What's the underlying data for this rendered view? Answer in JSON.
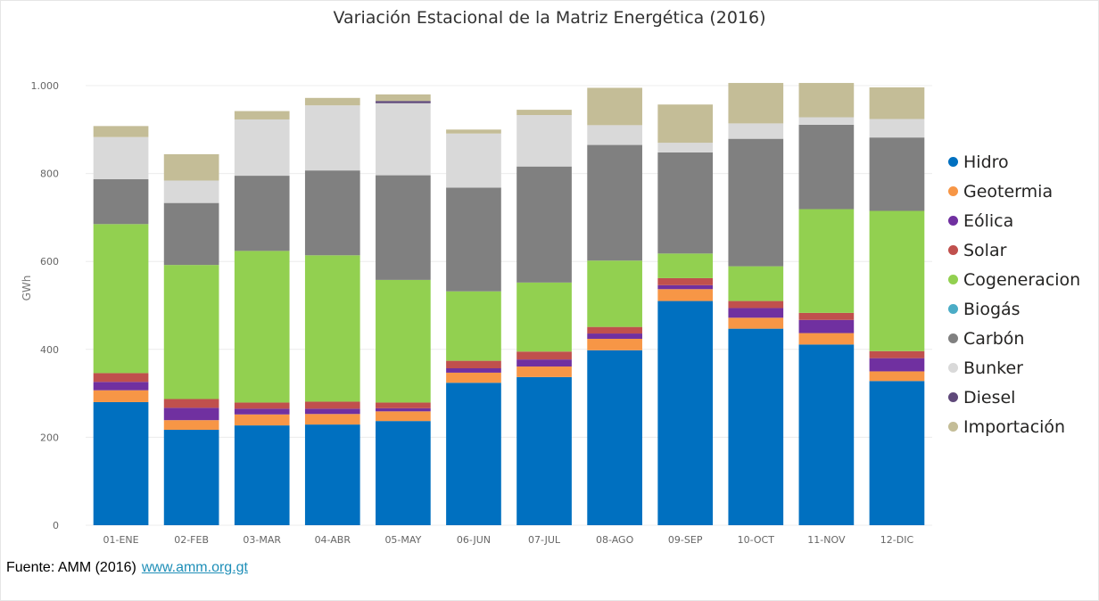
{
  "chart_data": {
    "type": "bar",
    "stacked": true,
    "title": "Variación Estacional de la Matriz Energética (2016)",
    "xlabel": "",
    "ylabel": "GWh",
    "ylim": [
      0,
      1000
    ],
    "yticks": [
      0,
      200,
      400,
      600,
      800,
      1000
    ],
    "ytick_labels": [
      "0",
      "200",
      "400",
      "600",
      "800",
      "1.000"
    ],
    "grid": true,
    "legend_position": "right",
    "categories": [
      "01-ENE",
      "02-FEB",
      "03-MAR",
      "04-ABR",
      "05-MAY",
      "06-JUN",
      "07-JUL",
      "08-AGO",
      "09-SEP",
      "10-OCT",
      "11-NOV",
      "12-DIC"
    ],
    "series": [
      {
        "name": "Hidro",
        "color": "#0070C0",
        "values": [
          280,
          217,
          227,
          229,
          237,
          324,
          337,
          398,
          510,
          447,
          411,
          328
        ]
      },
      {
        "name": "Geotermia",
        "color": "#F79646",
        "values": [
          27,
          22,
          25,
          24,
          22,
          23,
          24,
          26,
          27,
          25,
          26,
          22
        ]
      },
      {
        "name": "Eólica",
        "color": "#7030A0",
        "values": [
          19,
          28,
          13,
          12,
          7,
          10,
          16,
          12,
          9,
          22,
          30,
          30
        ]
      },
      {
        "name": "Solar",
        "color": "#C0504D",
        "values": [
          20,
          20,
          14,
          16,
          13,
          17,
          18,
          15,
          16,
          16,
          16,
          16
        ]
      },
      {
        "name": "Cogeneracion",
        "color": "#92D050",
        "values": [
          339,
          305,
          345,
          333,
          279,
          158,
          157,
          151,
          56,
          79,
          236,
          319
        ]
      },
      {
        "name": "Biogás",
        "color": "#4BACC6",
        "values": [
          0,
          0,
          0,
          0,
          0,
          0,
          0,
          0,
          0,
          0,
          0,
          0
        ]
      },
      {
        "name": "Carbón",
        "color": "#808080",
        "values": [
          102,
          141,
          171,
          193,
          238,
          236,
          264,
          263,
          230,
          290,
          192,
          167
        ]
      },
      {
        "name": "Bunker",
        "color": "#D9D9D9",
        "values": [
          96,
          51,
          128,
          148,
          164,
          123,
          117,
          45,
          22,
          35,
          17,
          42
        ]
      },
      {
        "name": "Diesel",
        "color": "#5F497A",
        "values": [
          0,
          0,
          0,
          0,
          5,
          0,
          0,
          0,
          0,
          0,
          0,
          0
        ]
      },
      {
        "name": "Importación",
        "color": "#C4BD97",
        "values": [
          25,
          60,
          19,
          17,
          15,
          9,
          12,
          85,
          87,
          92,
          78,
          72
        ]
      }
    ]
  },
  "footer": {
    "source": "Fuente: AMM (2016)",
    "link": "www.amm.org.gt"
  }
}
